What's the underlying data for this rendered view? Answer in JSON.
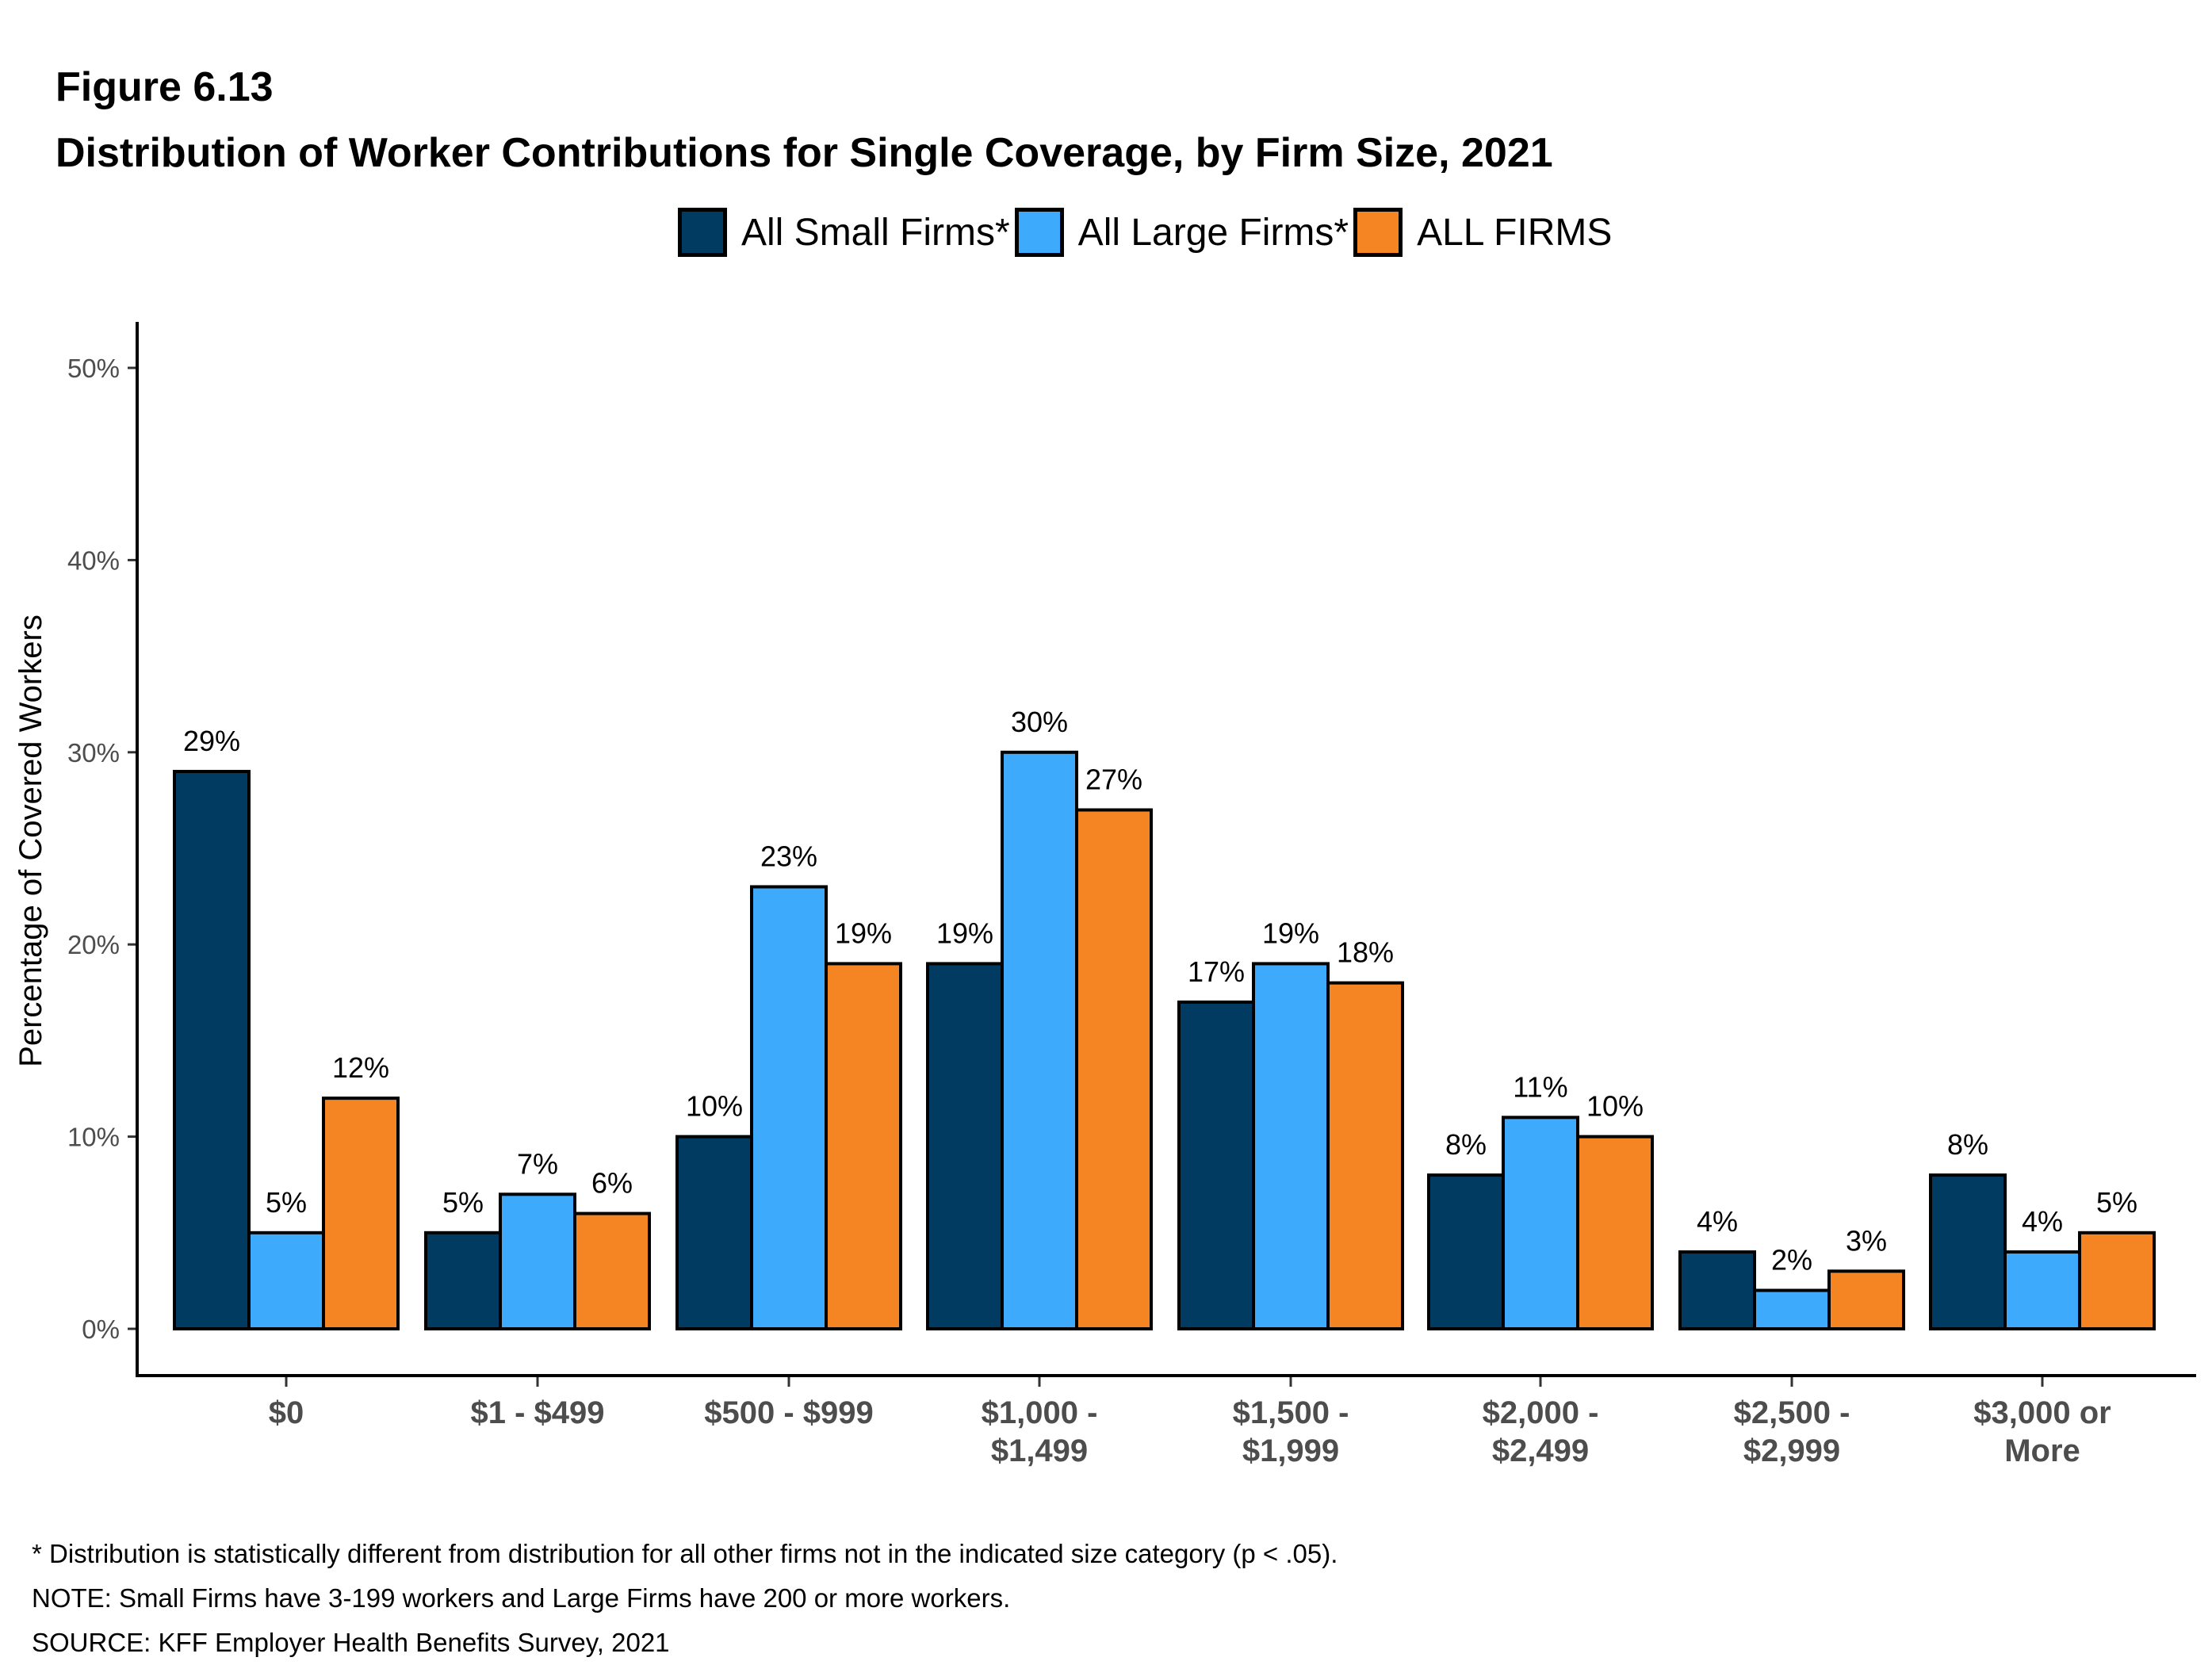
{
  "figure_number": "Figure 6.13",
  "title": "Distribution of Worker Contributions for Single Coverage, by Firm Size, 2021",
  "notes": [
    "* Distribution is statistically different from distribution for all other firms not in the indicated size category (p < .05).",
    "NOTE: Small Firms have 3-199 workers and Large Firms have 200 or more workers.",
    "SOURCE: KFF Employer Health Benefits Survey, 2021"
  ],
  "chart_data": {
    "type": "bar",
    "title": "Distribution of Worker Contributions for Single Coverage, by Firm Size, 2021",
    "xlabel": "",
    "ylabel": "Percentage of Covered Workers",
    "ylim": [
      0,
      50
    ],
    "yticks": [
      "0%",
      "10%",
      "20%",
      "30%",
      "40%",
      "50%"
    ],
    "ytick_values": [
      0,
      10,
      20,
      30,
      40,
      50
    ],
    "grid": false,
    "legend_position": "top-center",
    "categories": [
      [
        "$0"
      ],
      [
        "$1 - $499"
      ],
      [
        "$500 - $999"
      ],
      [
        "$1,000 -",
        "$1,499"
      ],
      [
        "$1,500 -",
        "$1,999"
      ],
      [
        "$2,000 -",
        "$2,499"
      ],
      [
        "$2,500 -",
        "$2,999"
      ],
      [
        "$3,000 or",
        "More"
      ]
    ],
    "series": [
      {
        "name": "All Small Firms*",
        "color": "#023b62",
        "values": [
          29,
          5,
          10,
          19,
          17,
          8,
          4,
          8
        ],
        "labels": [
          "29%",
          "5%",
          "10%",
          "19%",
          "17%",
          "8%",
          "4%",
          "8%"
        ]
      },
      {
        "name": "All Large Firms*",
        "color": "#3eaafb",
        "values": [
          5,
          7,
          23,
          30,
          19,
          11,
          2,
          4
        ],
        "labels": [
          "5%",
          "7%",
          "23%",
          "30%",
          "19%",
          "11%",
          "2%",
          "4%"
        ]
      },
      {
        "name": "ALL FIRMS",
        "color": "#f58422",
        "values": [
          12,
          6,
          19,
          27,
          18,
          10,
          3,
          5
        ],
        "labels": [
          "12%",
          "6%",
          "19%",
          "27%",
          "18%",
          "10%",
          "3%",
          "5%"
        ]
      }
    ]
  }
}
